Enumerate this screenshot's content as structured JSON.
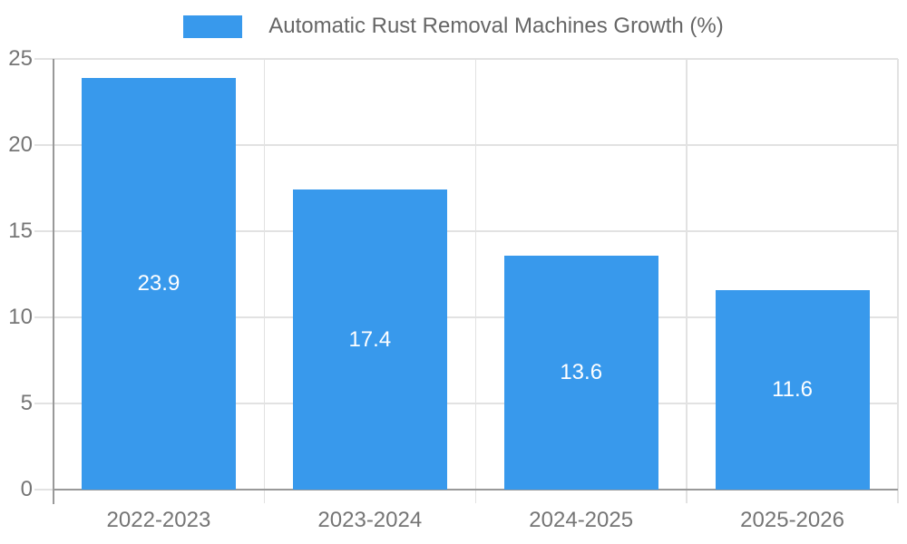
{
  "legend": {
    "label": "Automatic Rust Removal Machines Growth (%)",
    "swatch_color": "#3899ec"
  },
  "chart_data": {
    "type": "bar",
    "title": "Automatic Rust Removal Machines Growth (%)",
    "categories": [
      "2022-2023",
      "2023-2024",
      "2024-2025",
      "2025-2026"
    ],
    "values": [
      23.9,
      17.4,
      13.6,
      11.6
    ],
    "xlabel": "",
    "ylabel": "",
    "ylim": [
      0,
      25
    ],
    "yticks": [
      0,
      5,
      10,
      15,
      20,
      25
    ],
    "bar_color": "#3899ec",
    "bar_label_color": "#ffffff",
    "grid": true,
    "legend_position": "top-center"
  },
  "colors": {
    "background": "#ffffff",
    "bar": "#3899ec",
    "axis_line": "#999999",
    "grid_line": "#e2e2e2",
    "tick_label": "#757575",
    "legend_text": "#666666",
    "bar_label": "#ffffff"
  }
}
